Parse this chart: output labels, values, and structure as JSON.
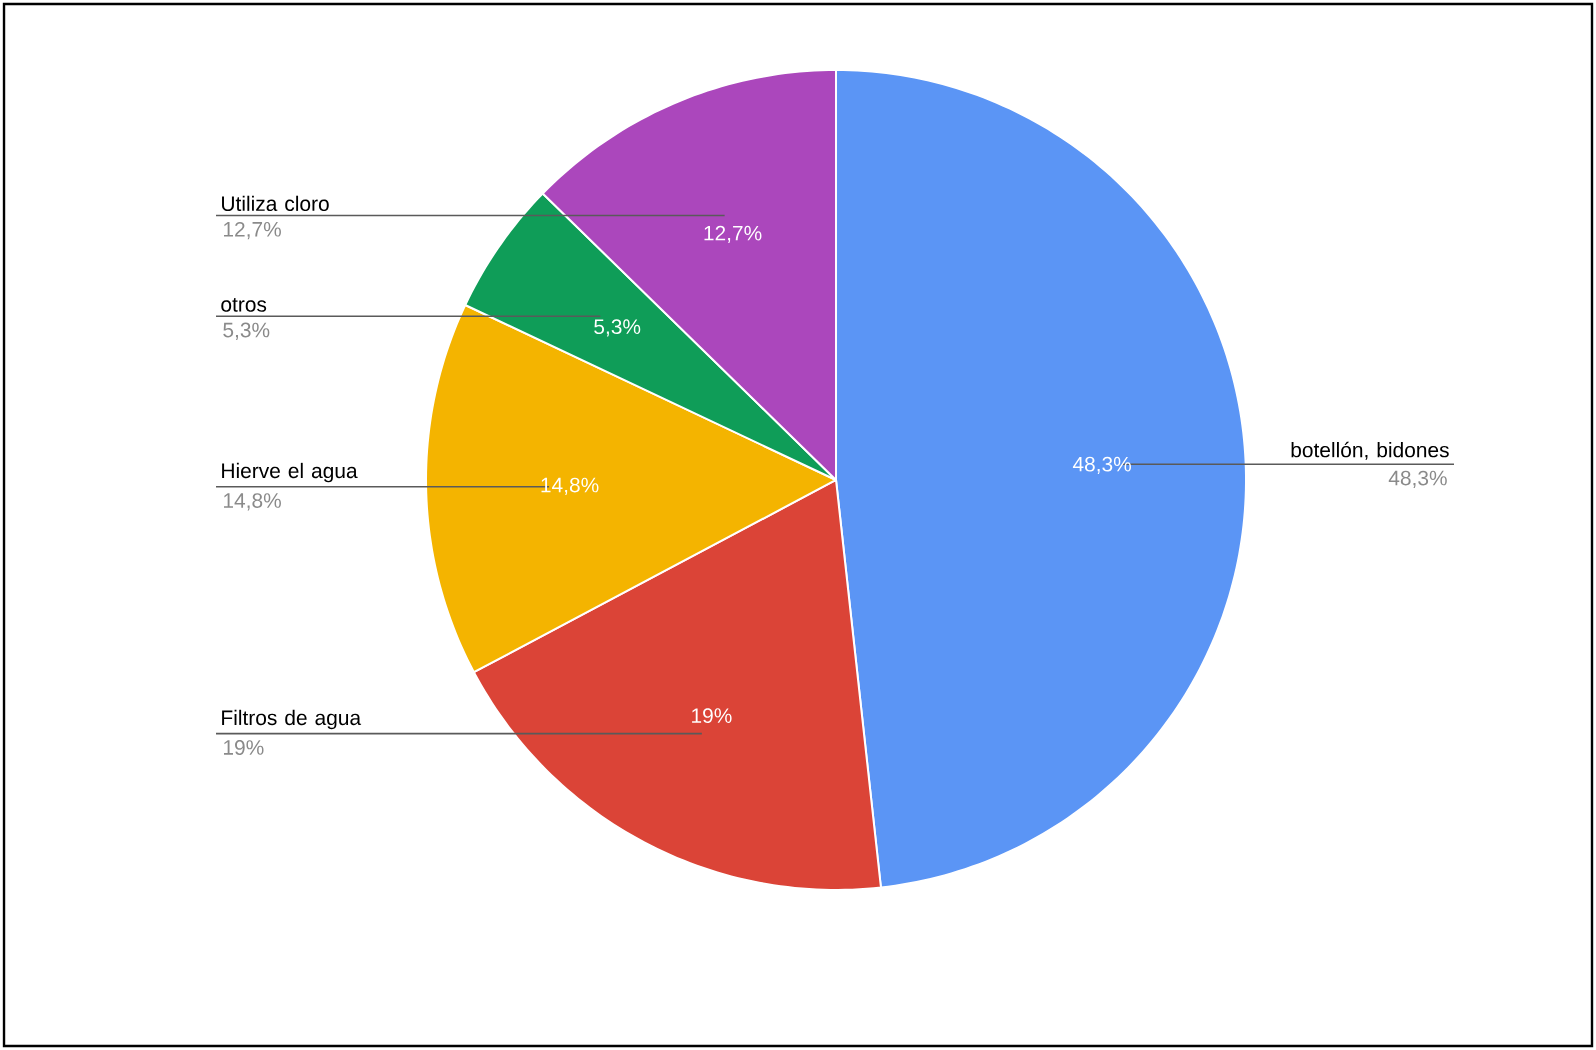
{
  "chart_data": {
    "type": "pie",
    "categories": [
      "botellón, bidones",
      "Filtros de agua",
      "Hierve el agua",
      "otros",
      "Utiliza cloro"
    ],
    "values": [
      48.3,
      19,
      14.8,
      5.3,
      12.7
    ],
    "colors": [
      "#5b95f5",
      "#db4437",
      "#f4b400",
      "#0f9d58",
      "#ab47bc"
    ],
    "value_labels": [
      "48,3%",
      "19%",
      "14,8%",
      "5,3%",
      "12,7%"
    ]
  }
}
